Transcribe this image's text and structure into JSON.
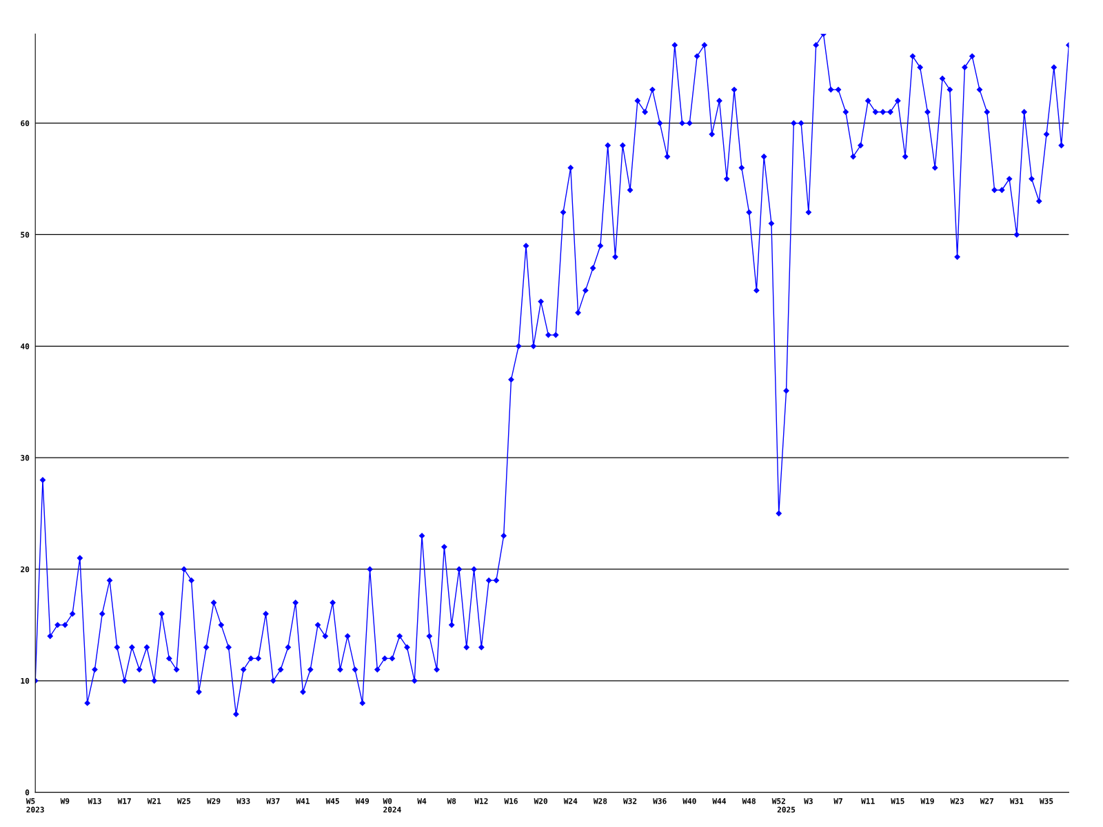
{
  "chart_data": {
    "type": "line",
    "categories": [
      "W5\n2023",
      null,
      null,
      null,
      "W9",
      null,
      null,
      null,
      "W13",
      null,
      null,
      null,
      "W17",
      null,
      null,
      null,
      "W21",
      null,
      null,
      null,
      "W25",
      null,
      null,
      null,
      "W29",
      null,
      null,
      null,
      "W33",
      null,
      null,
      null,
      "W37",
      null,
      null,
      null,
      "W41",
      null,
      null,
      null,
      "W45",
      null,
      null,
      null,
      "W49",
      null,
      null,
      null,
      "W0\n2024",
      null,
      null,
      null,
      "W4",
      null,
      null,
      null,
      "W8",
      null,
      null,
      null,
      "W12",
      null,
      null,
      null,
      "W16",
      null,
      null,
      null,
      "W20",
      null,
      null,
      null,
      "W24",
      null,
      null,
      null,
      "W28",
      null,
      null,
      null,
      "W32",
      null,
      null,
      null,
      "W36",
      null,
      null,
      null,
      "W40",
      null,
      null,
      null,
      "W44",
      null,
      null,
      null,
      "W48",
      null,
      null,
      null,
      "W52",
      "\n2025",
      null,
      null,
      "W3",
      null,
      null,
      null,
      "W7",
      null,
      null,
      null,
      "W11",
      null,
      null,
      null,
      "W15",
      null,
      null,
      null,
      "W19",
      null,
      null,
      null,
      "W23",
      null,
      null,
      null,
      "W27",
      null,
      null,
      null,
      "W31",
      null,
      null,
      null,
      "W35",
      null,
      null,
      null
    ],
    "series": [
      {
        "color": "#0000ff",
        "values": [
          10,
          28,
          14,
          15,
          15,
          16,
          21,
          8,
          11,
          16,
          19,
          13,
          10,
          13,
          11,
          13,
          10,
          16,
          12,
          11,
          20,
          19,
          9,
          13,
          17,
          15,
          13,
          7,
          11,
          12,
          12,
          16,
          10,
          11,
          13,
          17,
          9,
          11,
          15,
          14,
          17,
          11,
          14,
          11,
          8,
          20,
          11,
          12,
          12,
          14,
          13,
          10,
          23,
          14,
          11,
          22,
          15,
          20,
          13,
          20,
          13,
          19,
          19,
          23,
          37,
          40,
          49,
          40,
          44,
          41,
          41,
          52,
          56,
          43,
          45,
          47,
          49,
          58,
          48,
          58,
          54,
          62,
          61,
          63,
          60,
          57,
          67,
          60,
          60,
          66,
          67,
          59,
          62,
          55,
          63,
          56,
          52,
          45,
          57,
          51,
          25,
          36,
          60,
          60,
          52,
          67,
          68,
          63,
          63,
          61,
          57,
          58,
          62,
          61,
          61,
          61,
          62,
          57,
          66,
          65,
          61,
          56,
          64,
          63,
          48,
          65,
          66,
          63,
          61,
          54,
          54,
          55,
          50,
          61,
          55,
          53,
          59,
          65,
          58,
          67
        ]
      }
    ],
    "ylim": [
      0,
      68
    ],
    "yticks": [
      0,
      10,
      20,
      30,
      40,
      50,
      60
    ],
    "grid": "y",
    "marker": "diamond",
    "line_style": "solid"
  }
}
